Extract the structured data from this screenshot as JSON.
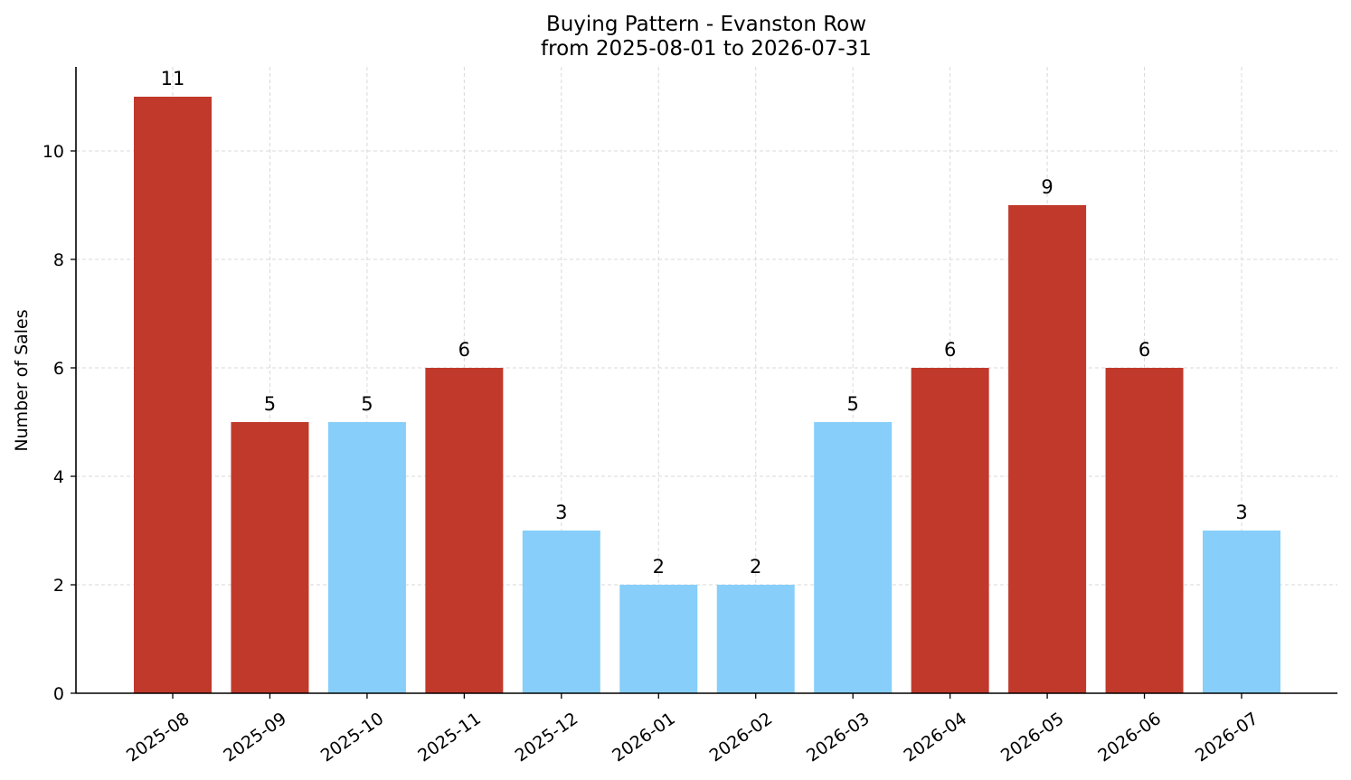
{
  "chart_data": {
    "type": "bar",
    "title": "Buying Pattern - Evanston Row",
    "subtitle": "from 2025-08-01 to 2026-07-31",
    "xlabel": "",
    "ylabel": "Number of Sales",
    "categories": [
      "2025-08",
      "2025-09",
      "2025-10",
      "2025-11",
      "2025-12",
      "2026-01",
      "2026-02",
      "2026-03",
      "2026-04",
      "2026-05",
      "2026-06",
      "2026-07"
    ],
    "values": [
      11,
      5,
      5,
      6,
      3,
      2,
      2,
      5,
      6,
      9,
      6,
      3
    ],
    "bar_colors": [
      "#c0392b",
      "#c0392b",
      "#87cefa",
      "#c0392b",
      "#87cefa",
      "#87cefa",
      "#87cefa",
      "#87cefa",
      "#c0392b",
      "#c0392b",
      "#c0392b",
      "#87cefa"
    ],
    "ylim": [
      0,
      11.55
    ],
    "yticks": [
      0,
      2,
      4,
      6,
      8,
      10
    ],
    "grid": true,
    "legend": "none"
  }
}
